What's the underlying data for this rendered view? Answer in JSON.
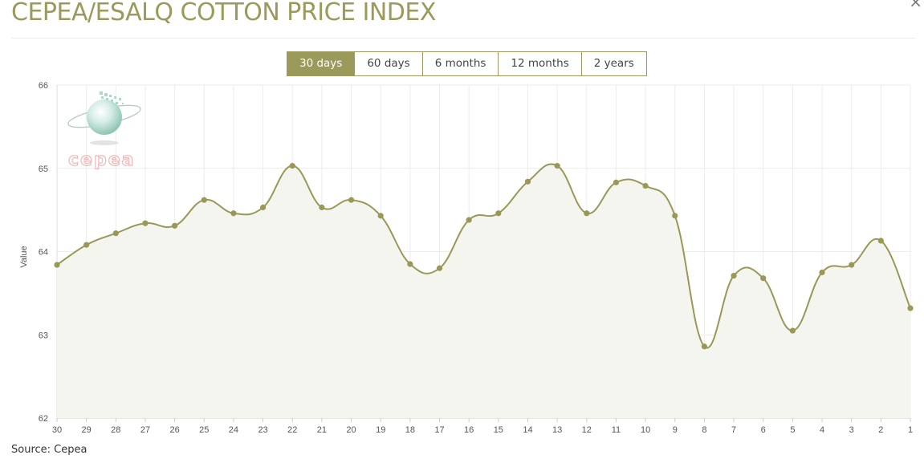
{
  "header": {
    "title": "CEPEA/ESALQ COTTON PRICE INDEX",
    "close_icon": "×"
  },
  "range_tabs": [
    {
      "label": "30 days",
      "active": true
    },
    {
      "label": "60 days",
      "active": false
    },
    {
      "label": "6 months",
      "active": false
    },
    {
      "label": "12 months",
      "active": false
    },
    {
      "label": "2 years",
      "active": false
    }
  ],
  "logo": {
    "text": "cepea"
  },
  "footer": {
    "source": "Source: Cepea"
  },
  "colors": {
    "accent": "#9b9a5a",
    "line": "#9a9858",
    "fill": "#f5f5f0",
    "grid": "#ececec"
  },
  "chart_data": {
    "type": "area",
    "ylabel": "Value",
    "xlabel": "",
    "ylim": [
      62,
      66
    ],
    "yticks": [
      62,
      63,
      64,
      65,
      66
    ],
    "grid": true,
    "categories": [
      "30",
      "29",
      "28",
      "27",
      "26",
      "25",
      "24",
      "23",
      "22",
      "21",
      "20",
      "19",
      "18",
      "17",
      "16",
      "15",
      "14",
      "13",
      "12",
      "11",
      "10",
      "9",
      "8",
      "7",
      "6",
      "5",
      "4",
      "3",
      "2",
      "1"
    ],
    "series": [
      {
        "values": [
          63.84,
          64.08,
          64.22,
          64.34,
          64.31,
          64.62,
          64.46,
          64.53,
          65.03,
          64.53,
          64.62,
          64.43,
          63.85,
          63.8,
          64.38,
          64.46,
          64.84,
          65.03,
          64.46,
          64.83,
          64.79,
          64.43,
          62.86,
          63.71,
          63.68,
          63.05,
          63.75,
          63.84,
          64.13,
          63.32
        ]
      }
    ]
  }
}
